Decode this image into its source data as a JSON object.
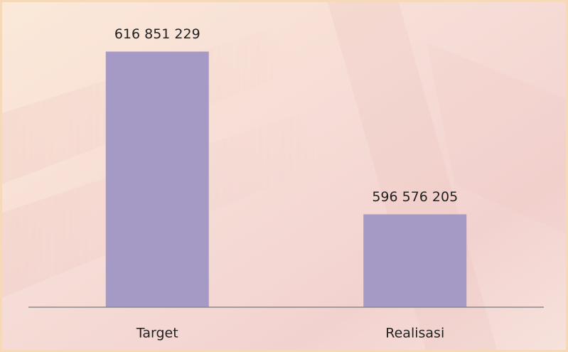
{
  "chart_data": {
    "type": "bar",
    "categories": [
      "Target",
      "Realisasi"
    ],
    "values": [
      616851229,
      596576205
    ],
    "value_labels": [
      "616 851 229",
      "596 576 205"
    ],
    "color": "#a59ac6",
    "ylim": [
      585000000,
      620000000
    ]
  }
}
